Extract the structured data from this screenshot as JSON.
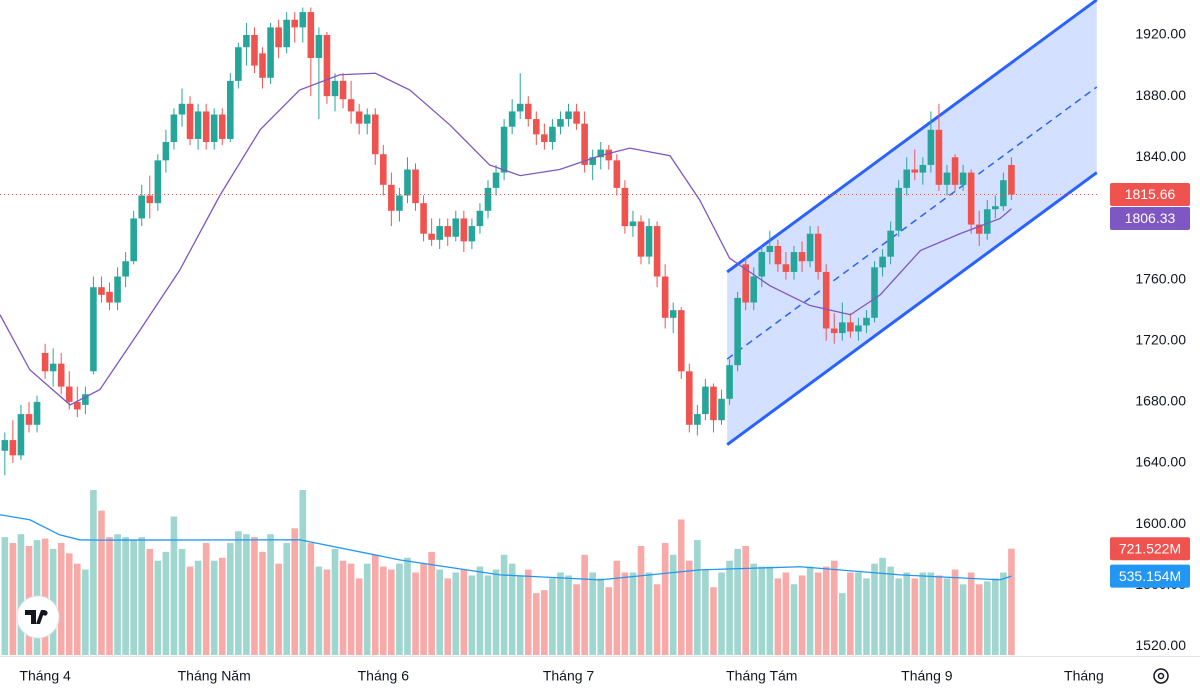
{
  "chart_data": {
    "type": "candlestick",
    "up_color": "#26a69a",
    "down_color": "#ef5350",
    "open": [
      1648,
      1655,
      1645,
      1672,
      1665,
      1712,
      1700,
      1705,
      1690,
      1680,
      1678,
      1700,
      1755,
      1752,
      1745,
      1762,
      1772,
      1800,
      1815,
      1810,
      1838,
      1850,
      1868,
      1875,
      1852,
      1870,
      1850,
      1868,
      1852,
      1890,
      1912,
      1920,
      1908,
      1892,
      1925,
      1912,
      1930,
      1925,
      1935,
      1905,
      1920,
      1880,
      1890,
      1878,
      1870,
      1862,
      1868,
      1842,
      1822,
      1805,
      1815,
      1832,
      1810,
      1790,
      1786,
      1795,
      1788,
      1800,
      1785,
      1795,
      1805,
      1820,
      1830,
      1860,
      1870,
      1875,
      1865,
      1855,
      1850,
      1860,
      1865,
      1870,
      1862,
      1835,
      1840,
      1845,
      1838,
      1820,
      1795,
      1798,
      1775,
      1795,
      1762,
      1735,
      1740,
      1700,
      1665,
      1672,
      1690,
      1668,
      1682,
      1704,
      1770,
      1745,
      1762,
      1778,
      1782,
      1770,
      1765,
      1778,
      1772,
      1790,
      1765,
      1728,
      1725,
      1732,
      1726,
      1730,
      1735,
      1768,
      1775,
      1792,
      1820,
      1832,
      1830,
      1835,
      1858,
      1822,
      1840,
      1822,
      1830,
      1796,
      1790,
      1806,
      1808,
      1835
    ],
    "high": [
      1660,
      1668,
      1678,
      1680,
      1684,
      1718,
      1715,
      1712,
      1700,
      1690,
      1690,
      1762,
      1762,
      1758,
      1768,
      1778,
      1805,
      1822,
      1828,
      1842,
      1858,
      1872,
      1885,
      1880,
      1875,
      1875,
      1872,
      1872,
      1895,
      1915,
      1928,
      1925,
      1912,
      1928,
      1930,
      1935,
      1935,
      1938,
      1938,
      1925,
      1922,
      1895,
      1895,
      1890,
      1875,
      1872,
      1872,
      1848,
      1830,
      1820,
      1840,
      1836,
      1815,
      1800,
      1800,
      1800,
      1805,
      1805,
      1800,
      1810,
      1825,
      1835,
      1865,
      1878,
      1895,
      1880,
      1870,
      1862,
      1865,
      1870,
      1875,
      1875,
      1870,
      1845,
      1850,
      1848,
      1842,
      1825,
      1805,
      1802,
      1800,
      1798,
      1770,
      1745,
      1742,
      1705,
      1678,
      1695,
      1692,
      1688,
      1708,
      1752,
      1775,
      1768,
      1782,
      1792,
      1786,
      1778,
      1782,
      1785,
      1795,
      1795,
      1770,
      1738,
      1745,
      1738,
      1735,
      1740,
      1772,
      1780,
      1798,
      1825,
      1840,
      1845,
      1840,
      1870,
      1875,
      1835,
      1842,
      1835,
      1832,
      1805,
      1812,
      1815,
      1830,
      1840
    ],
    "low": [
      1632,
      1640,
      1642,
      1660,
      1660,
      1695,
      1690,
      1685,
      1675,
      1670,
      1672,
      1698,
      1745,
      1740,
      1740,
      1755,
      1770,
      1795,
      1800,
      1805,
      1830,
      1845,
      1860,
      1848,
      1845,
      1845,
      1845,
      1848,
      1850,
      1885,
      1900,
      1895,
      1885,
      1888,
      1905,
      1908,
      1915,
      1915,
      1880,
      1865,
      1875,
      1870,
      1872,
      1862,
      1855,
      1855,
      1835,
      1815,
      1795,
      1798,
      1810,
      1805,
      1785,
      1782,
      1780,
      1782,
      1785,
      1778,
      1780,
      1790,
      1800,
      1815,
      1825,
      1855,
      1865,
      1860,
      1848,
      1845,
      1845,
      1855,
      1860,
      1858,
      1830,
      1825,
      1832,
      1832,
      1815,
      1790,
      1788,
      1770,
      1770,
      1755,
      1728,
      1725,
      1695,
      1660,
      1658,
      1668,
      1660,
      1665,
      1678,
      1700,
      1740,
      1740,
      1755,
      1770,
      1765,
      1760,
      1760,
      1765,
      1768,
      1760,
      1720,
      1718,
      1720,
      1722,
      1720,
      1725,
      1732,
      1762,
      1770,
      1788,
      1815,
      1825,
      1822,
      1830,
      1818,
      1815,
      1818,
      1818,
      1790,
      1782,
      1786,
      1800,
      1805,
      1812
    ],
    "close": [
      1655,
      1645,
      1672,
      1665,
      1680,
      1700,
      1705,
      1690,
      1680,
      1675,
      1685,
      1755,
      1750,
      1745,
      1762,
      1772,
      1800,
      1815,
      1810,
      1838,
      1850,
      1868,
      1875,
      1852,
      1870,
      1850,
      1868,
      1852,
      1890,
      1912,
      1920,
      1900,
      1892,
      1925,
      1912,
      1930,
      1925,
      1935,
      1905,
      1920,
      1880,
      1890,
      1878,
      1870,
      1862,
      1868,
      1842,
      1822,
      1805,
      1815,
      1832,
      1810,
      1790,
      1786,
      1795,
      1788,
      1800,
      1785,
      1795,
      1805,
      1820,
      1830,
      1860,
      1870,
      1875,
      1865,
      1855,
      1850,
      1860,
      1865,
      1870,
      1862,
      1835,
      1840,
      1845,
      1838,
      1820,
      1795,
      1798,
      1775,
      1795,
      1762,
      1735,
      1740,
      1700,
      1665,
      1672,
      1690,
      1668,
      1682,
      1704,
      1748,
      1745,
      1762,
      1778,
      1782,
      1770,
      1765,
      1778,
      1772,
      1790,
      1765,
      1728,
      1725,
      1732,
      1726,
      1730,
      1735,
      1768,
      1775,
      1792,
      1820,
      1832,
      1830,
      1835,
      1858,
      1822,
      1830,
      1822,
      1830,
      1796,
      1790,
      1806,
      1808,
      1825,
      1815.66
    ],
    "xlim": [
      -0.6,
      136
    ],
    "xticks": [
      {
        "value": 5,
        "label": "Tháng 4"
      },
      {
        "value": 26,
        "label": "Tháng Năm"
      },
      {
        "value": 47,
        "label": "Tháng 6"
      },
      {
        "value": 70,
        "label": "Tháng 7"
      },
      {
        "value": 94,
        "label": "Tháng Tám"
      },
      {
        "value": 114.5,
        "label": "Tháng 9"
      },
      {
        "value": 134,
        "label": "Tháng"
      }
    ],
    "ylim": [
      1514.4,
      1942.9
    ],
    "yticks": [
      {
        "value": 1520,
        "label": "1520.00"
      },
      {
        "value": 1560,
        "label": "1560.00"
      },
      {
        "value": 1600,
        "label": "1600.00"
      },
      {
        "value": 1640,
        "label": "1640.00"
      },
      {
        "value": 1680,
        "label": "1680.00"
      },
      {
        "value": 1720,
        "label": "1720.00"
      },
      {
        "value": 1760,
        "label": "1760.00"
      },
      {
        "value": 1800,
        "label": "1800.00"
      },
      {
        "value": 1840,
        "label": "1840.00"
      },
      {
        "value": 1880,
        "label": "1880.00"
      },
      {
        "value": 1920,
        "label": "1920.00"
      }
    ],
    "ma": {
      "color": "#7e57c2",
      "x": [
        -0.6,
        3.1,
        8.1,
        11.8,
        16.8,
        21.7,
        26.7,
        31.7,
        36.6,
        41.6,
        46,
        50.3,
        55.3,
        60.2,
        64,
        68.9,
        73.9,
        77.6,
        82.6,
        86.3,
        90,
        95,
        100,
        105,
        108.7,
        113.7,
        118.6,
        123.6,
        125
      ],
      "values": [
        1737,
        1701,
        1678,
        1688,
        1727,
        1766,
        1815,
        1858,
        1884,
        1894,
        1895,
        1884,
        1861,
        1835,
        1828,
        1832,
        1841,
        1846,
        1841,
        1812,
        1774,
        1756,
        1743,
        1737,
        1750,
        1779,
        1790,
        1800,
        1806.33
      ]
    },
    "volume": {
      "up_color": "#9fd6cf",
      "down_color": "#f7aaa8",
      "ylim": [
        0,
        1120
      ],
      "last_label": "721.522M",
      "values": [
        800,
        760,
        820,
        740,
        780,
        790,
        720,
        760,
        690,
        620,
        580,
        1120,
        980,
        800,
        820,
        800,
        780,
        800,
        720,
        640,
        700,
        940,
        720,
        600,
        640,
        760,
        640,
        660,
        760,
        840,
        820,
        800,
        700,
        820,
        620,
        760,
        860,
        1120,
        760,
        600,
        580,
        720,
        640,
        620,
        520,
        620,
        680,
        600,
        580,
        620,
        660,
        560,
        620,
        700,
        580,
        520,
        560,
        580,
        540,
        600,
        540,
        580,
        680,
        620,
        540,
        580,
        420,
        440,
        520,
        560,
        540,
        480,
        680,
        560,
        520,
        460,
        640,
        560,
        560,
        740,
        560,
        480,
        760,
        680,
        920,
        640,
        780,
        580,
        460,
        560,
        640,
        720,
        740,
        620,
        600,
        600,
        520,
        560,
        480,
        540,
        600,
        560,
        600,
        640,
        420,
        560,
        560,
        520,
        620,
        660,
        600,
        520,
        560,
        520,
        560,
        560,
        540,
        520,
        580,
        480,
        560,
        480,
        500,
        520,
        560,
        721.522
      ]
    },
    "volume_ma": {
      "color": "#2196f3",
      "last_label": "535.154M",
      "x": [
        -0.6,
        3.1,
        6.8,
        9.3,
        12,
        36.6,
        49,
        61.5,
        73.9,
        86.3,
        98.8,
        111.2,
        123.6,
        125
      ],
      "values": [
        952,
        918,
        816,
        782,
        780,
        782,
        646,
        544,
        510,
        578,
        599,
        544,
        510,
        535.154
      ]
    },
    "channel": {
      "color": "#2962ff",
      "x": [
        89.7,
        135.6
      ],
      "upper": [
        1765,
        1943
      ],
      "middle": [
        1708,
        1886
      ],
      "lower": [
        1652,
        1830
      ]
    }
  }
}
